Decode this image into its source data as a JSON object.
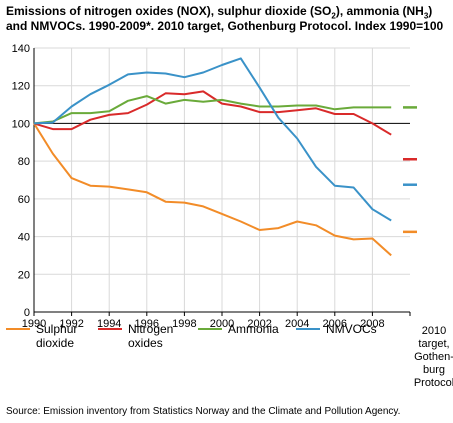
{
  "title_parts": [
    "Emissions of nitrogen oxides (NOX), sulphur dioxide (SO",
    "2",
    "), ammonia (NH",
    "3",
    ") and NMVOCs. 1990-2009*. 2010 target, Gothenburg Protocol. Index 1990=100"
  ],
  "source": "Source: Emission inventory from Statistics Norway and the Climate and Pollution Agency.",
  "chart_data": {
    "type": "line",
    "x": [
      1990,
      1991,
      1992,
      1993,
      1994,
      1995,
      1996,
      1997,
      1998,
      1999,
      2000,
      2001,
      2002,
      2003,
      2004,
      2005,
      2006,
      2007,
      2008,
      2009
    ],
    "xticks": [
      "1990",
      "1992",
      "1994",
      "1996",
      "1998",
      "2000",
      "2002",
      "2004",
      "2006",
      "2008"
    ],
    "xtick_values": [
      1990,
      1992,
      1994,
      1996,
      1998,
      2000,
      2002,
      2004,
      2006,
      2008
    ],
    "target_tick": [
      "2010",
      "target,",
      "Gothen-",
      "burg",
      "Protocol"
    ],
    "ylim": [
      0,
      140
    ],
    "yticks": [
      "0",
      "20",
      "40",
      "60",
      "80",
      "100",
      "120",
      "140"
    ],
    "ytick_values": [
      0,
      20,
      40,
      60,
      80,
      100,
      120,
      140
    ],
    "reference_line": 100,
    "grid": true,
    "legend_position": "bottom",
    "series": [
      {
        "name": "Sulphur dioxide",
        "color": "#f28c28",
        "values": [
          100,
          84,
          71,
          67,
          66.5,
          65,
          63.5,
          58.5,
          58,
          56,
          52,
          48,
          43.5,
          44.5,
          48,
          46,
          40.5,
          38.5,
          39,
          30
        ],
        "target": 42.5
      },
      {
        "name": "Nitrogen oxides",
        "color": "#d92a2a",
        "values": [
          100,
          97,
          97,
          102,
          104.5,
          105.5,
          110,
          116,
          115.5,
          117,
          110.5,
          109,
          106,
          106,
          107,
          108,
          105,
          105,
          100,
          94
        ],
        "target": 81
      },
      {
        "name": "Ammonia",
        "color": "#6aaa3a",
        "values": [
          100,
          101,
          105.5,
          105.5,
          106.5,
          112,
          114.5,
          110.5,
          112.5,
          111.5,
          112.5,
          110.5,
          109,
          109,
          109.5,
          109.5,
          107.5,
          108.5,
          108.5,
          108.5
        ],
        "target": 108.5
      },
      {
        "name": "NMVOCs",
        "color": "#3a92c8",
        "values": [
          100,
          100.5,
          109,
          115.5,
          120.5,
          126,
          127,
          126.5,
          124.5,
          127,
          131,
          134.5,
          119,
          103,
          92,
          77,
          67,
          66,
          54.5,
          48.5
        ],
        "target": 67.5
      }
    ]
  }
}
